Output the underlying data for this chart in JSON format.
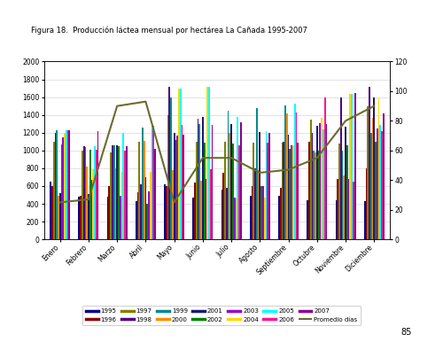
{
  "title": "Figura 18.  Producción láctea mensual por hectárea La Cañada 1995-2007",
  "months": [
    "Enero",
    "Febrero",
    "Marzo",
    "Abril",
    "Mayo",
    "Junio",
    "Julio",
    "Agosto",
    "Septiembre",
    "Octubre",
    "Noviembre",
    "Diciembre"
  ],
  "ylim_left": [
    0,
    2000
  ],
  "ylim_right": [
    0,
    120
  ],
  "yticks_left": [
    0,
    200,
    400,
    600,
    800,
    1000,
    1200,
    1400,
    1600,
    1800,
    2000
  ],
  "yticks_right": [
    0,
    20,
    40,
    60,
    80,
    100,
    120
  ],
  "series": [
    {
      "label": "1995",
      "color": "#00008B",
      "values": [
        650,
        480,
        480,
        430,
        620,
        470,
        560,
        490,
        490,
        440,
        440,
        430
      ]
    },
    {
      "label": "1996",
      "color": "#8B0000",
      "values": [
        600,
        490,
        600,
        530,
        600,
        640,
        750,
        600,
        580,
        1100,
        680,
        800
      ]
    },
    {
      "label": "1997",
      "color": "#808000",
      "values": [
        1100,
        1000,
        980,
        1100,
        1400,
        1100,
        1100,
        1090,
        1090,
        1350,
        1080,
        1500
      ]
    },
    {
      "label": "1998",
      "color": "#4B0082",
      "values": [
        1200,
        1050,
        1060,
        620,
        1720,
        1360,
        580,
        800,
        1100,
        1200,
        1600,
        1720
      ]
    },
    {
      "label": "1999",
      "color": "#008B8B",
      "values": [
        1230,
        1040,
        1060,
        1260,
        1600,
        1300,
        1450,
        1480,
        1510,
        1000,
        1000,
        1200
      ]
    },
    {
      "label": "2000",
      "color": "#FF8C00",
      "values": [
        490,
        820,
        800,
        1110,
        780,
        660,
        1200,
        780,
        1420,
        980,
        720,
        1370
      ]
    },
    {
      "label": "2001",
      "color": "#191970",
      "values": [
        520,
        510,
        1060,
        700,
        1200,
        1380,
        1300,
        1210,
        1180,
        1280,
        1270,
        1600
      ]
    },
    {
      "label": "2002",
      "color": "#008000",
      "values": [
        1070,
        1010,
        1050,
        400,
        1120,
        1090,
        1080,
        600,
        1020,
        1000,
        1060,
        1100
      ]
    },
    {
      "label": "2003",
      "color": "#9400D3",
      "values": [
        1150,
        670,
        490,
        540,
        1170,
        680,
        470,
        600,
        1060,
        1310,
        680,
        1250
      ]
    },
    {
      "label": "2004",
      "color": "#FFD700",
      "values": [
        1200,
        790,
        760,
        760,
        1700,
        1720,
        460,
        470,
        1060,
        1370,
        1640,
        1590
      ]
    },
    {
      "label": "2005",
      "color": "#00FFFF",
      "values": [
        1230,
        1050,
        1200,
        1290,
        1700,
        1720,
        1380,
        1220,
        1530,
        1240,
        1640,
        1290
      ]
    },
    {
      "label": "2006",
      "color": "#FF1493",
      "values": [
        1230,
        1010,
        1000,
        1280,
        1290,
        790,
        1060,
        1090,
        1430,
        1600,
        650,
        1220
      ]
    },
    {
      "label": "2007",
      "color": "#8B008B",
      "values": [
        1230,
        1220,
        1050,
        1020,
        1180,
        1290,
        1320,
        1200,
        1090,
        1300,
        1650,
        1420
      ]
    }
  ],
  "promedio": {
    "label": "Promedio días",
    "color": "#6B6B2F",
    "values": [
      25,
      27,
      90,
      93,
      25,
      55,
      55,
      45,
      47,
      55,
      80,
      90
    ]
  },
  "background_color": "#ffffff",
  "plot_bg": "#ffffff"
}
